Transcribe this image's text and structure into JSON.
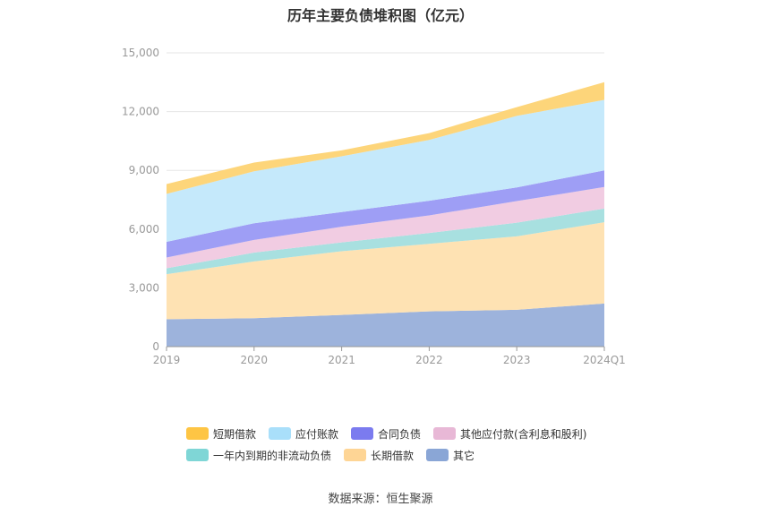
{
  "chart_data": {
    "type": "area",
    "stacked": true,
    "title": "历年主要负债堆积图（亿元）",
    "categories": [
      "2019",
      "2020",
      "2021",
      "2022",
      "2023",
      "2024Q1"
    ],
    "ylim": [
      0,
      15000
    ],
    "yticks": [
      "0",
      "3,000",
      "6,000",
      "9,000",
      "12,000",
      "15,000"
    ],
    "grid": true,
    "legend_position": "bottom",
    "series": [
      {
        "name": "其它",
        "color": "#9db3dc",
        "values": [
          1400,
          1450,
          1620,
          1800,
          1880,
          2200
        ]
      },
      {
        "name": "长期借款",
        "color": "#fee2b3",
        "values": [
          2300,
          2900,
          3250,
          3450,
          3750,
          4150
        ]
      },
      {
        "name": "一年内到期的非流动负债",
        "color": "#a8e0e0",
        "values": [
          300,
          450,
          450,
          550,
          700,
          700
        ]
      },
      {
        "name": "其他应付款(含利息和股利)",
        "color": "#f1cce2",
        "values": [
          550,
          650,
          800,
          900,
          1100,
          1100
        ]
      },
      {
        "name": "合同负债",
        "color": "#9e9ef5",
        "values": [
          800,
          850,
          750,
          750,
          700,
          850
        ]
      },
      {
        "name": "应付账款",
        "color": "#c5e9fb",
        "values": [
          2450,
          2650,
          2850,
          3100,
          3650,
          3600
        ]
      },
      {
        "name": "短期借款",
        "color": "#fdd57a",
        "values": [
          500,
          450,
          300,
          350,
          450,
          900
        ]
      }
    ]
  },
  "legend": {
    "row1": [
      {
        "label": "短期借款",
        "color": "#fec544"
      },
      {
        "label": "应付账款",
        "color": "#a9dffa"
      },
      {
        "label": "合同负债",
        "color": "#7b7bef"
      },
      {
        "label": "其他应付款(含利息和股利)",
        "color": "#e8b8d6"
      }
    ],
    "row2": [
      {
        "label": "一年内到期的非流动负债",
        "color": "#7fd6d6"
      },
      {
        "label": "长期借款",
        "color": "#fed595"
      },
      {
        "label": "其它",
        "color": "#8aa6d6"
      }
    ]
  },
  "source": "数据来源：恒生聚源"
}
